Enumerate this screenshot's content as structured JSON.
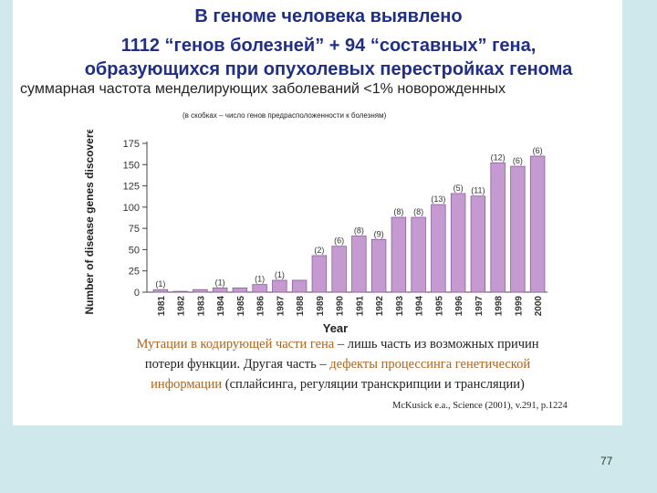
{
  "slide": {
    "title_line1": "В геноме человека выявлено",
    "title_line2a": "1112 “генов болезней” ",
    "title_plus": "+",
    "title_line2b": " 94 “составных” гена,",
    "title_line3": "образующихся при опухолевых перестройках генома",
    "subtitle": "суммарная частота менделирующих заболеваний <1% новорожденных",
    "note": "(в скобках – число генов предрасположенности к болезням)",
    "body": {
      "p1_highlight": "Мутации в кодирующей части гена",
      "p1_rest": " – лишь часть из возможных причин",
      "p2_start": "потери функции. Другая часть – ",
      "p2_highlight": "дефекты процессинга генетической",
      "p3_highlight": "информации",
      "p3_rest": " (сплайсинга, регуляции транскрипции и трансляции)"
    },
    "citation": "McKusick e.a., Science (2001), v.291, p.1224",
    "page_number": "77"
  },
  "colors": {
    "title": "#1f2f86",
    "bar_fill": "#c49ad0",
    "bar_stroke": "#8a5f99",
    "highlight_text": "#b0641a",
    "background": "#cfe8ec"
  },
  "chart_data": {
    "type": "bar",
    "xlabel": "Year",
    "ylabel": "Number of disease genes discovered",
    "ylim": [
      0,
      175
    ],
    "yticks": [
      0,
      25,
      50,
      75,
      100,
      125,
      150,
      175
    ],
    "grid": false,
    "categories": [
      "1981",
      "1982",
      "1983",
      "1984",
      "1985",
      "1986",
      "1987",
      "1988",
      "1989",
      "1990",
      "1991",
      "1992",
      "1993",
      "1994",
      "1995",
      "1996",
      "1997",
      "1998",
      "1999",
      "2000"
    ],
    "values": [
      3,
      1,
      3,
      5,
      5,
      9,
      14,
      14,
      43,
      54,
      66,
      62,
      88,
      88,
      103,
      116,
      113,
      152,
      148,
      160
    ],
    "annotations": [
      "(1)",
      "",
      "",
      "(1)",
      "",
      "(1)",
      "(1)",
      "",
      "(2)",
      "(6)",
      "(8)",
      "(9)",
      "(8)",
      "(8)",
      "(13)",
      "(5)",
      "(11)",
      "(12)",
      "(6)",
      "(6)"
    ]
  }
}
